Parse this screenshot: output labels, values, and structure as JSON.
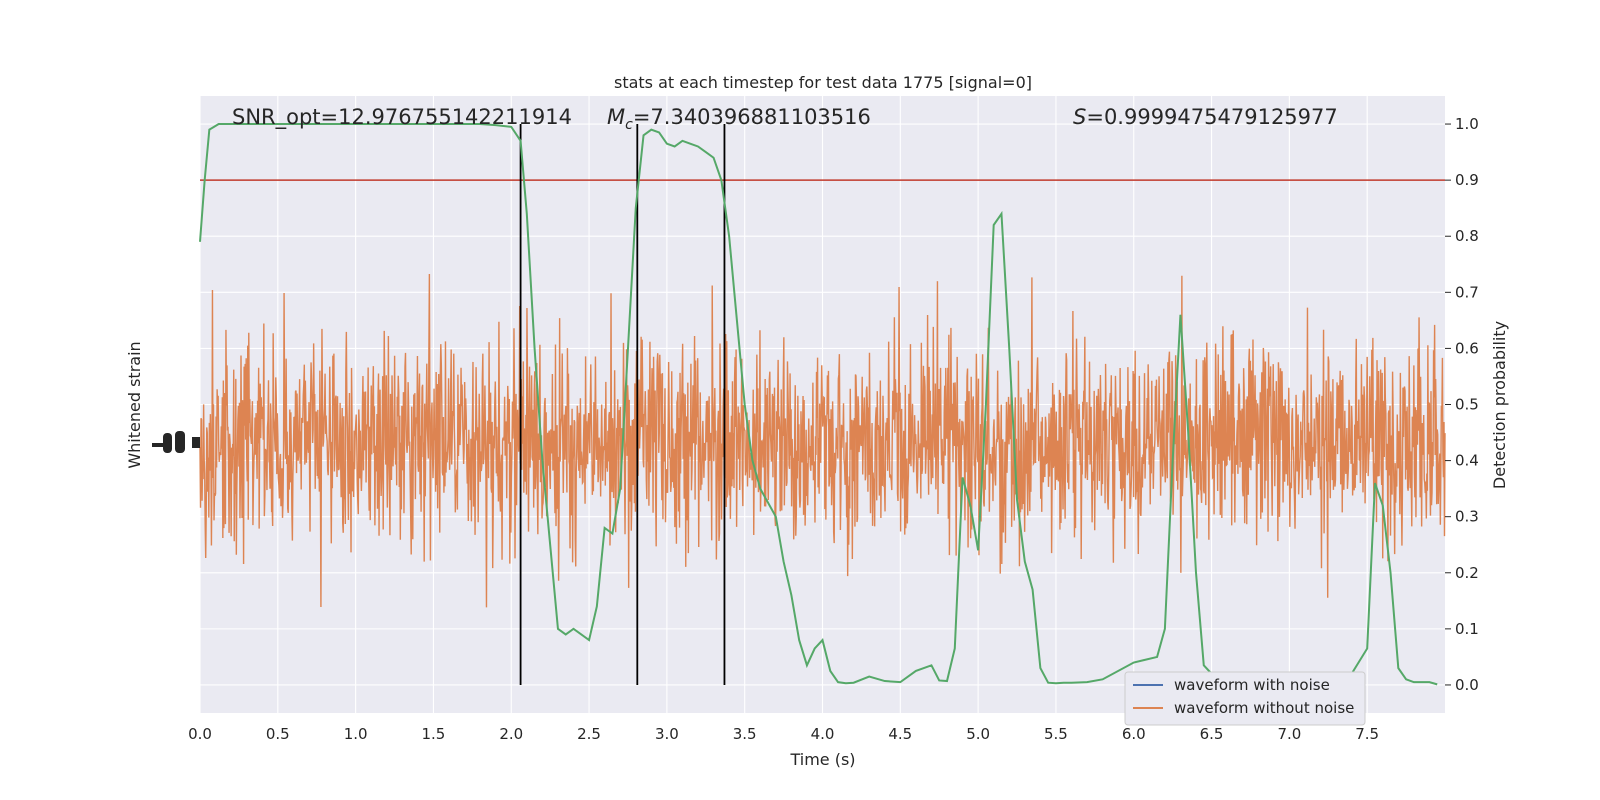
{
  "chart_data": {
    "type": "line",
    "title": "stats at each timestep for test data 1775 [signal=0]",
    "xlabel": "Time (s)",
    "ylabel_left": "Whitened strain",
    "ylabel_right": "Detection probability",
    "xlim": [
      0,
      8
    ],
    "ylim_right": [
      -0.05,
      1.05
    ],
    "x_ticks": [
      "0.0",
      "0.5",
      "1.0",
      "1.5",
      "2.0",
      "2.5",
      "3.0",
      "3.5",
      "4.0",
      "4.5",
      "5.0",
      "5.5",
      "6.0",
      "6.5",
      "7.0",
      "7.5"
    ],
    "y_ticks_right": [
      "0.0",
      "0.1",
      "0.2",
      "0.3",
      "0.4",
      "0.5",
      "0.6",
      "0.7",
      "0.8",
      "0.9",
      "1.0"
    ],
    "grid": true,
    "legend_position": "lower-right",
    "annotations": {
      "snr": "SNR_opt=12.976755142211914",
      "mc_symbol": "M",
      "mc_sub": "c",
      "mc_value": "=7.340396881103516",
      "s_symbol": "S",
      "s_value": "=0.9999475479125977"
    },
    "threshold": {
      "y": 0.9,
      "color": "#c0392b"
    },
    "vertical_lines_x": [
      2.06,
      2.81,
      3.37
    ],
    "series": [
      {
        "name": "waveform with noise",
        "color": "#4c72b0"
      },
      {
        "name": "waveform without noise",
        "color": "#dd8452"
      },
      {
        "color": "#55a868",
        "x": [
          0.0,
          0.03,
          0.06,
          0.12,
          0.2,
          0.3,
          0.5,
          1.0,
          1.5,
          1.8,
          1.9,
          2.0,
          2.06,
          2.1,
          2.15,
          2.2,
          2.25,
          2.3,
          2.35,
          2.4,
          2.45,
          2.5,
          2.55,
          2.6,
          2.65,
          2.7,
          2.75,
          2.8,
          2.85,
          2.9,
          2.95,
          3.0,
          3.05,
          3.1,
          3.15,
          3.2,
          3.25,
          3.3,
          3.35,
          3.4,
          3.45,
          3.5,
          3.55,
          3.6,
          3.7,
          3.75,
          3.8,
          3.85,
          3.9,
          3.95,
          4.0,
          4.05,
          4.1,
          4.15,
          4.2,
          4.3,
          4.4,
          4.5,
          4.6,
          4.7,
          4.75,
          4.8,
          4.85,
          4.9,
          4.95,
          5.0,
          5.05,
          5.1,
          5.15,
          5.2,
          5.25,
          5.3,
          5.35,
          5.4,
          5.45,
          5.5,
          5.55,
          5.6,
          5.7,
          5.8,
          6.0,
          6.15,
          6.2,
          6.25,
          6.3,
          6.35,
          6.4,
          6.45,
          6.5,
          6.6,
          6.8,
          7.0,
          7.2,
          7.4,
          7.5,
          7.55,
          7.6,
          7.65,
          7.7,
          7.75,
          7.8,
          7.9,
          7.95
        ],
        "y": [
          0.79,
          0.9,
          0.99,
          1.0,
          1.0,
          1.0,
          1.0,
          1.0,
          1.0,
          1.0,
          0.998,
          0.995,
          0.97,
          0.84,
          0.6,
          0.4,
          0.25,
          0.1,
          0.09,
          0.1,
          0.09,
          0.08,
          0.14,
          0.28,
          0.27,
          0.35,
          0.6,
          0.85,
          0.98,
          0.99,
          0.985,
          0.965,
          0.96,
          0.97,
          0.965,
          0.96,
          0.95,
          0.94,
          0.9,
          0.8,
          0.65,
          0.5,
          0.4,
          0.35,
          0.3,
          0.22,
          0.16,
          0.08,
          0.035,
          0.065,
          0.08,
          0.025,
          0.005,
          0.003,
          0.004,
          0.015,
          0.007,
          0.005,
          0.025,
          0.035,
          0.008,
          0.007,
          0.065,
          0.37,
          0.32,
          0.24,
          0.5,
          0.82,
          0.84,
          0.6,
          0.33,
          0.22,
          0.17,
          0.03,
          0.004,
          0.003,
          0.004,
          0.004,
          0.005,
          0.01,
          0.04,
          0.05,
          0.1,
          0.4,
          0.66,
          0.45,
          0.2,
          0.035,
          0.02,
          0.01,
          0.005,
          0.005,
          0.01,
          0.02,
          0.065,
          0.36,
          0.32,
          0.2,
          0.03,
          0.01,
          0.005,
          0.005,
          0.001
        ]
      }
    ],
    "noise": {
      "center": 0.43,
      "amplitude": 0.17,
      "seed": 1775
    }
  }
}
